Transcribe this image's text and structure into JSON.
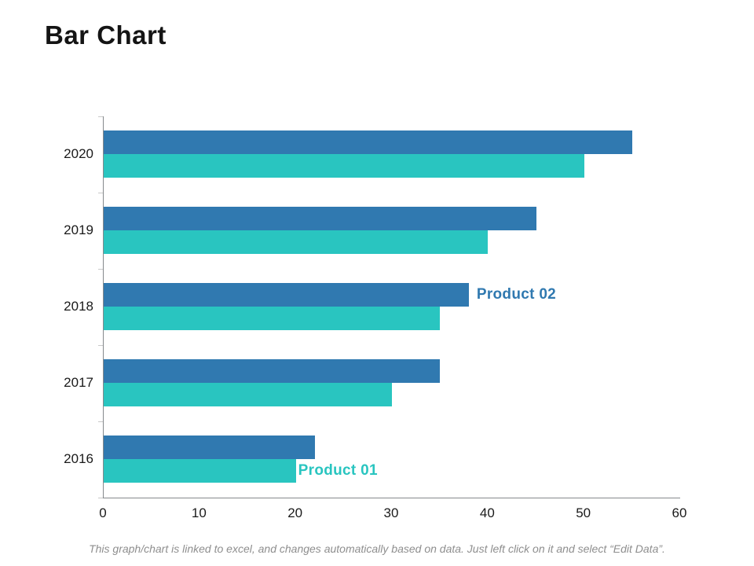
{
  "title": "Bar Chart",
  "footnote": "This graph/chart is linked to excel, and changes automatically based on data. Just left click on it and select “Edit Data”.",
  "chart_data": {
    "type": "bar",
    "orientation": "horizontal",
    "title": "Bar Chart",
    "xlabel": "",
    "ylabel": "",
    "categories": [
      "2020",
      "2019",
      "2018",
      "2017",
      "2016"
    ],
    "series": [
      {
        "name": "Product 02",
        "color": "#3079B0",
        "values": [
          55,
          45,
          38,
          35,
          22
        ],
        "inline_label_category": "2018"
      },
      {
        "name": "Product 01",
        "color": "#29C5C0",
        "values": [
          50,
          40,
          35,
          30,
          20
        ],
        "inline_label_category": "2016"
      }
    ],
    "xlim": [
      0,
      60
    ],
    "x_ticks": [
      0,
      10,
      20,
      30,
      40,
      50,
      60
    ],
    "grid": false,
    "legend_position": "inline-next-to-bars",
    "axis_color": "#85898c",
    "ytick_color": "#c9c9c9",
    "text_color": "#1a1a1a"
  }
}
